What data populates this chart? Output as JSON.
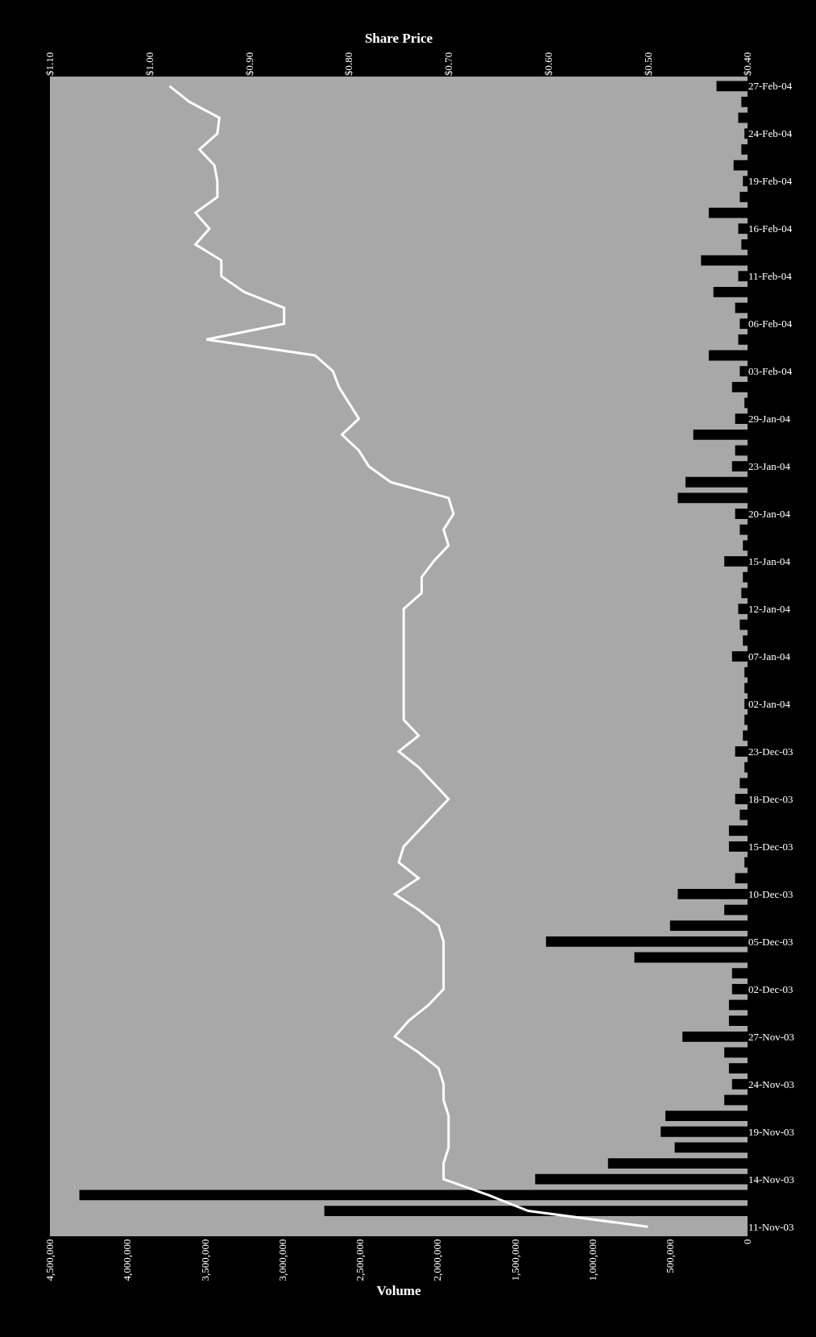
{
  "chart_data": {
    "type": "bar",
    "orientation": "horizontal",
    "xlabel": "Volume",
    "x2label": "Share Price",
    "categories": [
      "27-Feb-04",
      null,
      null,
      "24-Feb-04",
      null,
      null,
      "19-Feb-04",
      null,
      null,
      "16-Feb-04",
      null,
      null,
      "11-Feb-04",
      null,
      null,
      "06-Feb-04",
      null,
      null,
      "03-Feb-04",
      null,
      null,
      "29-Jan-04",
      null,
      null,
      "23-Jan-04",
      null,
      null,
      "20-Jan-04",
      null,
      null,
      "15-Jan-04",
      null,
      null,
      "12-Jan-04",
      null,
      null,
      "07-Jan-04",
      null,
      null,
      "02-Jan-04",
      null,
      null,
      "23-Dec-03",
      null,
      null,
      "18-Dec-03",
      null,
      null,
      "15-Dec-03",
      null,
      null,
      "10-Dec-03",
      null,
      null,
      "05-Dec-03",
      null,
      null,
      "02-Dec-03",
      null,
      null,
      "27-Nov-03",
      null,
      null,
      "24-Nov-03",
      null,
      null,
      "19-Nov-03",
      null,
      null,
      "14-Nov-03",
      null,
      null,
      "11-Nov-03"
    ],
    "series": [
      {
        "color": "#000000",
        "values": [
          200000,
          40000,
          60000,
          20000,
          40000,
          90000,
          30000,
          50000,
          250000,
          60000,
          40000,
          300000,
          60000,
          220000,
          80000,
          50000,
          60000,
          250000,
          50000,
          100000,
          20000,
          80000,
          350000,
          80000,
          100000,
          400000,
          450000,
          80000,
          50000,
          30000,
          150000,
          30000,
          40000,
          60000,
          50000,
          30000,
          100000,
          20000,
          20000,
          20000,
          20000,
          30000,
          80000,
          20000,
          50000,
          80000,
          50000,
          120000,
          120000,
          20000,
          80000,
          450000,
          150000,
          500000,
          1300000,
          730000,
          100000,
          100000,
          120000,
          120000,
          420000,
          150000,
          120000,
          100000,
          150000,
          530000,
          560000,
          470000,
          900000,
          1370000,
          4310000,
          2730000,
          0
        ]
      },
      {
        "type": "line",
        "axis": "x2",
        "color": "#ffffff",
        "values": [
          0.98,
          0.96,
          0.93,
          0.932,
          0.95,
          0.935,
          0.932,
          0.932,
          0.954,
          0.94,
          0.954,
          0.928,
          0.928,
          0.905,
          0.865,
          0.865,
          0.943,
          0.834,
          0.816,
          0.81,
          0.8,
          0.79,
          0.807,
          0.79,
          0.78,
          0.758,
          0.7,
          0.695,
          0.705,
          0.7,
          0.715,
          0.727,
          0.727,
          0.745,
          0.745,
          0.745,
          0.745,
          0.745,
          0.745,
          0.745,
          0.745,
          0.73,
          0.75,
          0.73,
          0.715,
          0.7,
          0.715,
          0.73,
          0.745,
          0.75,
          0.73,
          0.754,
          0.73,
          0.71,
          0.705,
          0.705,
          0.705,
          0.705,
          0.72,
          0.74,
          0.754,
          0.73,
          0.71,
          0.705,
          0.705,
          0.7,
          0.7,
          0.7,
          0.705,
          0.705,
          0.66,
          0.62,
          0.5
        ]
      }
    ],
    "xlim": [
      4500000,
      0
    ],
    "xticks": [
      {
        "value": 4500000,
        "label": "4,500,000"
      },
      {
        "value": 4000000,
        "label": "4,000,000"
      },
      {
        "value": 3500000,
        "label": "3,500,000"
      },
      {
        "value": 3000000,
        "label": "3,000,000"
      },
      {
        "value": 2500000,
        "label": "2,500,000"
      },
      {
        "value": 2000000,
        "label": "2,000,000"
      },
      {
        "value": 1500000,
        "label": "1,500,000"
      },
      {
        "value": 1000000,
        "label": "1,000,000"
      },
      {
        "value": 500000,
        "label": "500,000"
      },
      0
    ],
    "x2lim": [
      1.1,
      0.4
    ],
    "x2ticks": [
      {
        "value": 1.1,
        "label": "$1.10"
      },
      {
        "value": 1.0,
        "label": "$1.00"
      },
      {
        "value": 0.9,
        "label": "$0.90"
      },
      {
        "value": 0.8,
        "label": "$0.80"
      },
      {
        "value": 0.7,
        "label": "$0.70"
      },
      {
        "value": 0.6,
        "label": "$0.60"
      },
      {
        "value": 0.5,
        "label": "$0.50"
      },
      {
        "value": 0.4,
        "label": "$0.40"
      }
    ],
    "grid": false,
    "marker": "none",
    "line_style": "solid"
  }
}
